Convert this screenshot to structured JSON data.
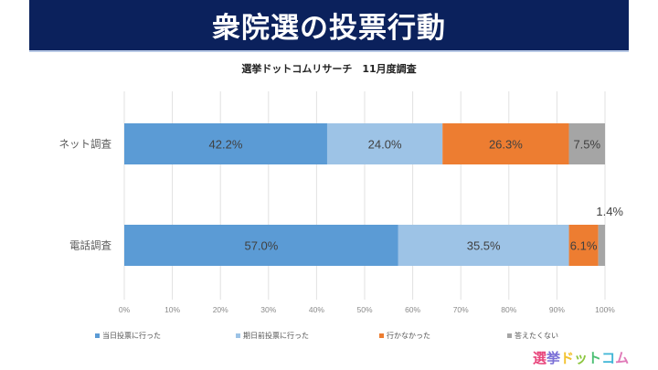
{
  "banner": {
    "title": "衆院選の投票行動"
  },
  "subtitle": "選挙ドットコムリサーチ　11月度調査",
  "chart_data": {
    "type": "bar",
    "orientation": "horizontal",
    "stacked": "percent",
    "title": "衆院選の投票行動",
    "subtitle": "選挙ドットコムリサーチ　11月度調査",
    "categories": [
      "ネット調査",
      "電話調査"
    ],
    "series": [
      {
        "name": "当日投票に行った",
        "color": "#5b9bd5",
        "values": [
          42.2,
          57.0
        ],
        "labels": [
          "42.2%",
          "57.0%"
        ]
      },
      {
        "name": "期日前投票に行った",
        "color": "#9dc3e6",
        "values": [
          24.0,
          35.5
        ],
        "labels": [
          "24.0%",
          "35.5%"
        ]
      },
      {
        "name": "行かなかった",
        "color": "#ed7d31",
        "values": [
          26.3,
          6.1
        ],
        "labels": [
          "26.3%",
          "6.1%"
        ]
      },
      {
        "name": "答えたくない",
        "color": "#a5a5a5",
        "values": [
          7.5,
          1.4
        ],
        "labels": [
          "7.5%",
          "1.4%"
        ]
      }
    ],
    "xlim": [
      0,
      100
    ],
    "x_ticks": [
      "0%",
      "10%",
      "20%",
      "30%",
      "40%",
      "50%",
      "60%",
      "70%",
      "80%",
      "90%",
      "100%"
    ],
    "grid": true,
    "legend_position": "bottom",
    "xlabel": "",
    "ylabel": ""
  },
  "logo": {
    "chars": [
      {
        "ch": "選",
        "color": "#e8467c"
      },
      {
        "ch": "挙",
        "color": "#7a6fd6"
      },
      {
        "ch": "ド",
        "color": "#f2c230"
      },
      {
        "ch": "ッ",
        "color": "#8cc63f"
      },
      {
        "ch": "ト",
        "color": "#4bbf73"
      },
      {
        "ch": "コ",
        "color": "#3fb6d6"
      },
      {
        "ch": "ム",
        "color": "#e07ab8"
      }
    ]
  }
}
